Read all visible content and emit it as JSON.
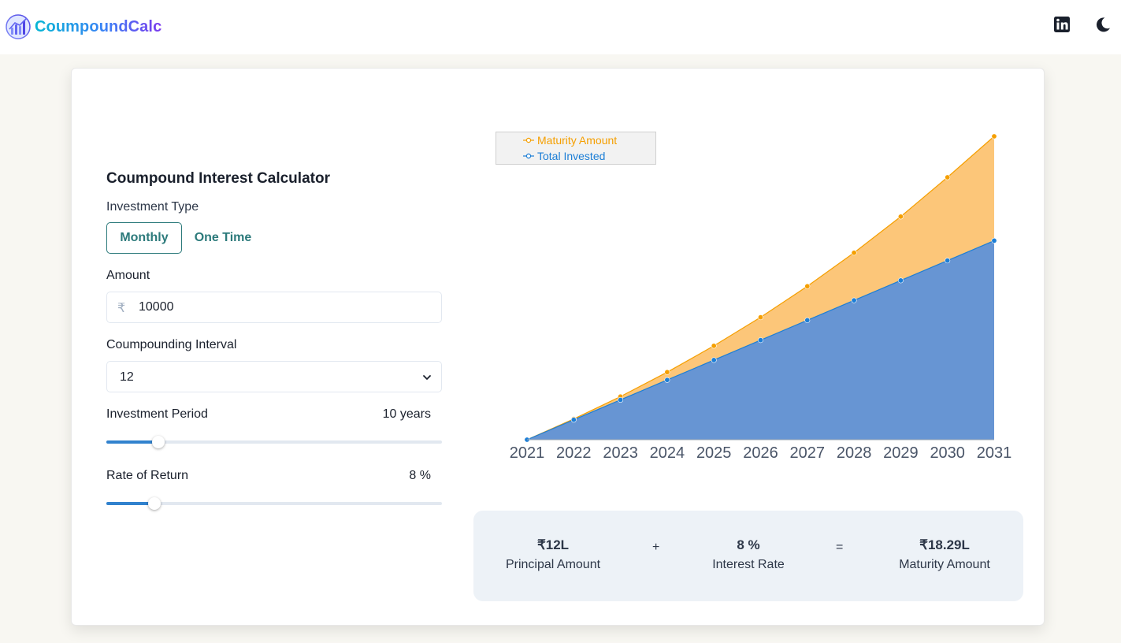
{
  "app": {
    "brand": "CoumpoundCalc",
    "logo_icon": "bar-chart-logo-icon",
    "linkedin_icon": "linkedin-icon",
    "theme_icon": "moon-icon"
  },
  "calculator": {
    "title": "Coumpound Interest Calculator",
    "investment_type_label": "Investment Type",
    "types": [
      "Monthly",
      "One Time"
    ],
    "selected_type": "Monthly",
    "amount_label": "Amount",
    "currency_symbol": "₹",
    "amount_value": "10000",
    "interval_label": "Coumpounding Interval",
    "interval_value": "12",
    "period_label": "Investment Period",
    "period_value": "10 years",
    "period_fraction": 0.155,
    "rate_label": "Rate of Return",
    "rate_value": "8 %",
    "rate_fraction": 0.143
  },
  "chart_data": {
    "type": "area",
    "x": [
      "2021",
      "2022",
      "2023",
      "2024",
      "2025",
      "2026",
      "2027",
      "2028",
      "2029",
      "2030",
      "2031"
    ],
    "series": [
      {
        "name": "Maturity Amount",
        "color": "#f59f00",
        "fill": "#fcc679",
        "values": [
          0,
          125000,
          260000,
          407000,
          566000,
          738000,
          925000,
          1127000,
          1345000,
          1582000,
          1829000
        ]
      },
      {
        "name": "Total Invested",
        "color": "#1c7ed6",
        "fill": "#6795d3",
        "values": [
          0,
          120000,
          240000,
          360000,
          480000,
          600000,
          720000,
          840000,
          960000,
          1080000,
          1200000
        ]
      }
    ],
    "ylim": [
      0,
      1829000
    ],
    "grid": false,
    "legend_position": "top-left"
  },
  "summary": {
    "principal_value": "₹12L",
    "principal_label": "Principal Amount",
    "plus": "+",
    "rate_value": "8 %",
    "rate_label": "Interest Rate",
    "equals": "=",
    "maturity_value": "₹18.29L",
    "maturity_label": "Maturity Amount"
  }
}
